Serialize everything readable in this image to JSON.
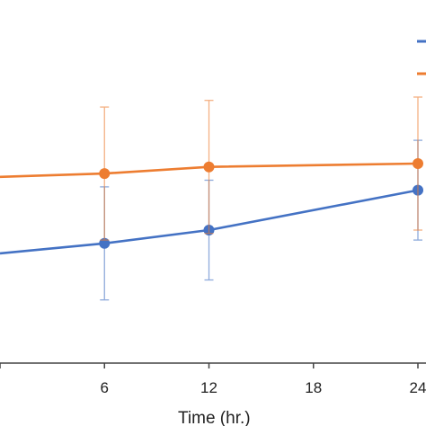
{
  "chart_data": {
    "type": "line",
    "xlabel": "Time (hr.)",
    "ylabel": "",
    "x_ticks": [
      "6",
      "12",
      "18",
      "24"
    ],
    "xlim": [
      0,
      24
    ],
    "ylim": [
      0,
      1
    ],
    "grid": false,
    "legend": "top-right (cropped)",
    "series": [
      {
        "color": "#4472C4",
        "x": [
          0,
          6,
          12,
          24
        ],
        "y": [
          0.33,
          0.36,
          0.4,
          0.52
        ],
        "err": [
          null,
          0.17,
          0.15,
          0.15
        ]
      },
      {
        "color": "#ED7D31",
        "x": [
          0,
          6,
          12,
          24
        ],
        "y": [
          0.56,
          0.57,
          0.59,
          0.6
        ],
        "err": [
          null,
          0.2,
          0.2,
          0.2
        ]
      }
    ]
  }
}
